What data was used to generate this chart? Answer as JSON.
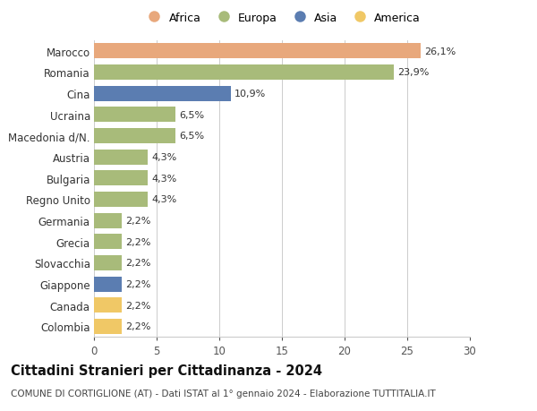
{
  "categories": [
    "Colombia",
    "Canada",
    "Giappone",
    "Slovacchia",
    "Grecia",
    "Germania",
    "Regno Unito",
    "Bulgaria",
    "Austria",
    "Macedonia d/N.",
    "Ucraina",
    "Cina",
    "Romania",
    "Marocco"
  ],
  "values": [
    2.2,
    2.2,
    2.2,
    2.2,
    2.2,
    2.2,
    4.3,
    4.3,
    4.3,
    6.5,
    6.5,
    10.9,
    23.9,
    26.1
  ],
  "colors": [
    "#f0c866",
    "#f0c866",
    "#5b7db1",
    "#a8bb7a",
    "#a8bb7a",
    "#a8bb7a",
    "#a8bb7a",
    "#a8bb7a",
    "#a8bb7a",
    "#a8bb7a",
    "#a8bb7a",
    "#5b7db1",
    "#a8bb7a",
    "#e8a87c"
  ],
  "labels": [
    "2,2%",
    "2,2%",
    "2,2%",
    "2,2%",
    "2,2%",
    "2,2%",
    "4,3%",
    "4,3%",
    "4,3%",
    "6,5%",
    "6,5%",
    "10,9%",
    "23,9%",
    "26,1%"
  ],
  "legend": [
    {
      "label": "Africa",
      "color": "#e8a87c"
    },
    {
      "label": "Europa",
      "color": "#a8bb7a"
    },
    {
      "label": "Asia",
      "color": "#5b7db1"
    },
    {
      "label": "America",
      "color": "#f0c866"
    }
  ],
  "title": "Cittadini Stranieri per Cittadinanza - 2024",
  "subtitle": "COMUNE DI CORTIGLIONE (AT) - Dati ISTAT al 1° gennaio 2024 - Elaborazione TUTTITALIA.IT",
  "xlim": [
    0,
    30
  ],
  "xticks": [
    0,
    5,
    10,
    15,
    20,
    25,
    30
  ],
  "bg_color": "#ffffff",
  "grid_color": "#cccccc",
  "bar_label_fontsize": 8,
  "ytick_fontsize": 8.5,
  "xtick_fontsize": 8.5,
  "title_fontsize": 10.5,
  "subtitle_fontsize": 7.5,
  "legend_fontsize": 9,
  "bar_height": 0.72
}
